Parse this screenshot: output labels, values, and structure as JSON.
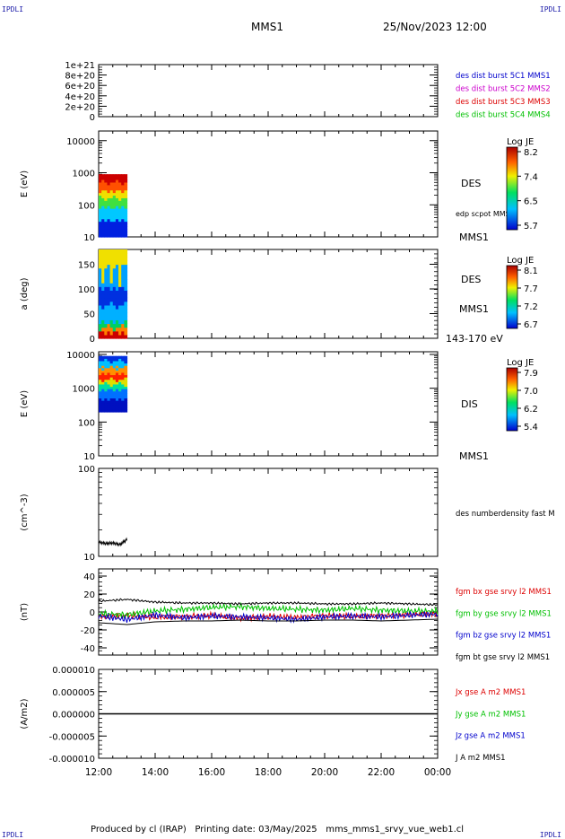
{
  "header": {
    "spacecraft": "MMS1",
    "datetime": "25/Nov/2023 12:00"
  },
  "corner_label": "IPDLI",
  "footer": {
    "produced_by": "Produced by cl (IRAP)",
    "printing_date": "Printing date: 03/May/2025",
    "filename": "mms_mms1_srvy_vue_web1.cl"
  },
  "colors": {
    "blue": "#0000cc",
    "magenta": "#cc00cc",
    "red": "#dd0000",
    "green": "#00c000",
    "black": "#000000"
  },
  "chart_data": [
    {
      "id": "panel1",
      "type": "line",
      "ylim": [
        0,
        1e+21
      ],
      "yticks": [
        "0",
        "2e+20",
        "4e+20",
        "6e+20",
        "8e+20",
        "1e+21"
      ],
      "legend": [
        {
          "text": "des dist burst 5C1 MMS1",
          "color": "#0000cc"
        },
        {
          "text": "des dist burst 5C2 MMS2",
          "color": "#cc00cc"
        },
        {
          "text": "des dist burst 5C3 MMS3",
          "color": "#dd0000"
        },
        {
          "text": "des dist burst 5C4 MMS4",
          "color": "#00c000"
        }
      ],
      "series": [
        {
          "values": [
            0,
            0
          ]
        }
      ]
    },
    {
      "id": "panel2",
      "type": "heatmap",
      "ylabel": "E (eV)",
      "yscale": "log",
      "ylim": [
        10,
        20000
      ],
      "yticks": [
        "10",
        "100",
        "1000",
        "10000"
      ],
      "right_label": "DES",
      "right_sub": "edp scpot MMS1",
      "bottom_right": "MMS1",
      "colorbar": {
        "title": "Log JE",
        "ticks": [
          "8.2",
          "7.4",
          "6.5",
          "5.7"
        ]
      },
      "data_extent": {
        "x": [
          "12:00",
          "13:00"
        ],
        "y": [
          10,
          900
        ]
      }
    },
    {
      "id": "panel3",
      "type": "heatmap",
      "ylabel": "a (deg)",
      "ylim": [
        0,
        180
      ],
      "yticks": [
        "0",
        "50",
        "100",
        "150"
      ],
      "right_label": "DES",
      "right_sub": "MMS1",
      "bottom_right": "143-170 eV",
      "colorbar": {
        "title": "Log JE",
        "ticks": [
          "8.1",
          "7.7",
          "7.2",
          "6.7"
        ]
      },
      "data_extent": {
        "x": [
          "12:00",
          "13:00"
        ],
        "y": [
          0,
          180
        ]
      }
    },
    {
      "id": "panel4",
      "type": "heatmap",
      "ylabel": "E (eV)",
      "yscale": "log",
      "ylim": [
        10,
        12000
      ],
      "yticks": [
        "10",
        "100",
        "1000",
        "10000"
      ],
      "right_label": "DIS",
      "bottom_right": "MMS1",
      "colorbar": {
        "title": "Log JE",
        "ticks": [
          "7.9",
          "7.0",
          "6.2",
          "5.4"
        ]
      },
      "data_extent": {
        "x": [
          "12:00",
          "13:00"
        ],
        "y": [
          200,
          9000
        ]
      }
    },
    {
      "id": "panel5",
      "type": "line",
      "ylabel": "(cm^-3)",
      "yscale": "log",
      "ylim": [
        10,
        100
      ],
      "yticks": [
        "10",
        "100"
      ],
      "legend": [
        {
          "text": "des numberdensity fast M",
          "color": "#000000"
        }
      ],
      "series": [
        {
          "x": [
            "12:00",
            "12:15",
            "12:30",
            "12:45",
            "13:00"
          ],
          "values": [
            14.5,
            14.0,
            14.2,
            13.6,
            15.5
          ]
        }
      ]
    },
    {
      "id": "panel6",
      "type": "line",
      "ylabel": "(nT)",
      "ylim": [
        -48,
        48
      ],
      "yticks": [
        "-40",
        "-20",
        "0",
        "20",
        "40"
      ],
      "legend": [
        {
          "text": "fgm bx gse srvy l2 MMS1",
          "color": "#dd0000"
        },
        {
          "text": "fgm by gse srvy l2 MMS1",
          "color": "#00c000"
        },
        {
          "text": "fgm bz gse srvy l2 MMS1",
          "color": "#0000cc"
        },
        {
          "text": "fgm bt gse srvy l2 MMS1",
          "color": "#000000"
        }
      ],
      "x": [
        "12:00",
        "13:00",
        "14:00",
        "15:00",
        "16:00",
        "17:00",
        "18:00",
        "19:00",
        "20:00",
        "21:00",
        "22:00",
        "23:00",
        "00:00"
      ],
      "series": [
        {
          "values": [
            -5,
            -4,
            -6,
            -5,
            -4,
            -7,
            -5,
            -6,
            -4,
            -5,
            -4,
            -3,
            -2
          ]
        },
        {
          "values": [
            -2,
            -3,
            1,
            3,
            5,
            6,
            4,
            3,
            2,
            4,
            2,
            1,
            1
          ]
        },
        {
          "values": [
            -4,
            -8,
            -3,
            -6,
            -4,
            -5,
            -6,
            -8,
            -5,
            -4,
            -5,
            -3,
            -2
          ]
        },
        {
          "values": [
            12,
            14,
            11,
            10,
            10,
            9,
            10,
            10,
            9,
            9,
            10,
            9,
            8
          ]
        }
      ]
    },
    {
      "id": "panel7",
      "type": "line",
      "ylabel": "(A/m2)",
      "ylim": [
        -1e-05,
        1e-05
      ],
      "yticks": [
        "-0.000010",
        "-0.000005",
        "0.000000",
        "0.000005",
        "0.000010"
      ],
      "legend": [
        {
          "text": "Jx gse A m2 MMS1",
          "color": "#dd0000"
        },
        {
          "text": "Jy gse A m2 MMS1",
          "color": "#00c000"
        },
        {
          "text": "Jz gse A m2 MMS1",
          "color": "#0000cc"
        },
        {
          "text": "J A m2 MMS1",
          "color": "#000000"
        }
      ],
      "series": [
        {
          "values": [
            0,
            0
          ]
        }
      ]
    }
  ],
  "time_axis": [
    "12:00",
    "14:00",
    "16:00",
    "18:00",
    "20:00",
    "22:00",
    "00:00"
  ]
}
